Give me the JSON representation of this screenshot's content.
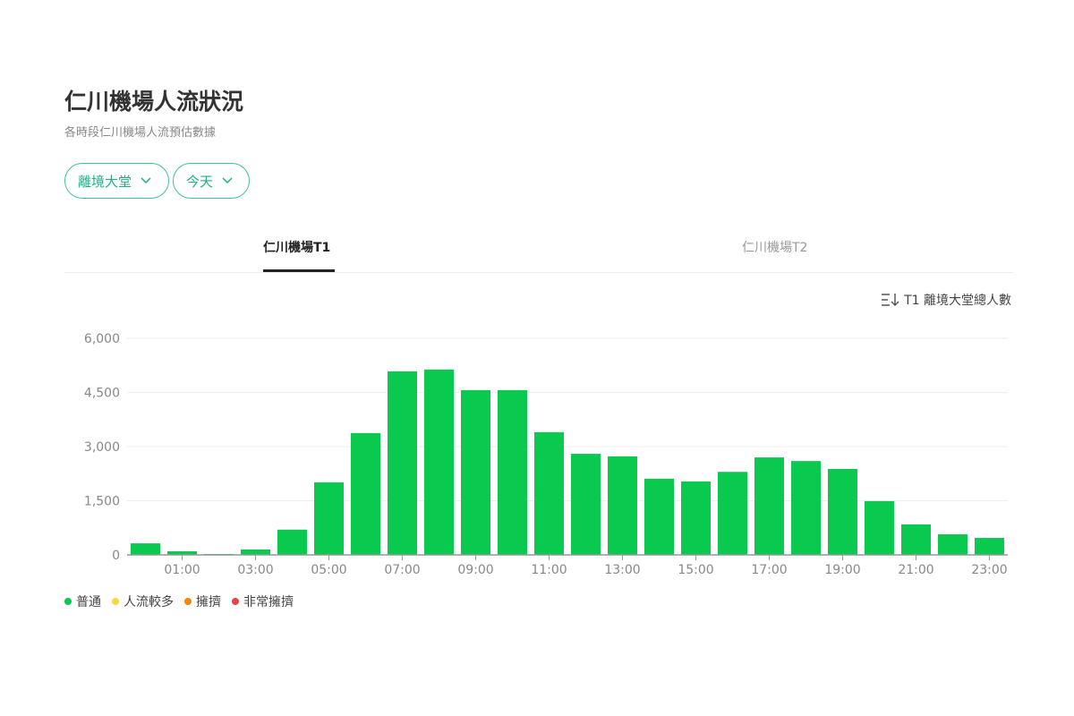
{
  "header": {
    "title": "仁川機場人流狀況",
    "subtitle": "各時段仁川機場人流預估數據"
  },
  "filters": [
    {
      "label": "離境大堂",
      "icon": "chevron-down-icon"
    },
    {
      "label": "今天",
      "icon": "chevron-down-icon"
    }
  ],
  "tabs": [
    {
      "label": "仁川機場T1",
      "active": true
    },
    {
      "label": "仁川機場T2",
      "active": false
    }
  ],
  "sort": {
    "label": "T1 離境大堂總人數",
    "icon": "sort-descending-icon"
  },
  "colors": {
    "accent": "#3cc3a0",
    "bar": "#0ac94f"
  },
  "legend": [
    {
      "label": "普通",
      "color": "#0ac94f"
    },
    {
      "label": "人流較多",
      "color": "#fcd53f"
    },
    {
      "label": "擁擠",
      "color": "#f5870a"
    },
    {
      "label": "非常擁擠",
      "color": "#e5434a"
    }
  ],
  "chart_data": {
    "type": "bar",
    "categories": [
      "00:00",
      "01:00",
      "02:00",
      "03:00",
      "04:00",
      "05:00",
      "06:00",
      "07:00",
      "08:00",
      "09:00",
      "10:00",
      "11:00",
      "12:00",
      "13:00",
      "14:00",
      "15:00",
      "16:00",
      "17:00",
      "18:00",
      "19:00",
      "20:00",
      "21:00",
      "22:00",
      "23:00"
    ],
    "values": [
      320,
      100,
      25,
      150,
      700,
      2010,
      3375,
      5085,
      5135,
      4565,
      4565,
      3400,
      2800,
      2730,
      2110,
      2035,
      2300,
      2700,
      2600,
      2380,
      1490,
      845,
      570,
      470
    ],
    "xtick_labels": [
      "01:00",
      "03:00",
      "05:00",
      "07:00",
      "09:00",
      "11:00",
      "13:00",
      "15:00",
      "17:00",
      "19:00",
      "21:00",
      "23:00"
    ],
    "yticks": [
      "0",
      "1,500",
      "3,000",
      "4,500",
      "6,000"
    ],
    "ytick_values": [
      0,
      1500,
      3000,
      4500,
      6000
    ],
    "ylim": [
      0,
      6000
    ],
    "grid": true
  }
}
